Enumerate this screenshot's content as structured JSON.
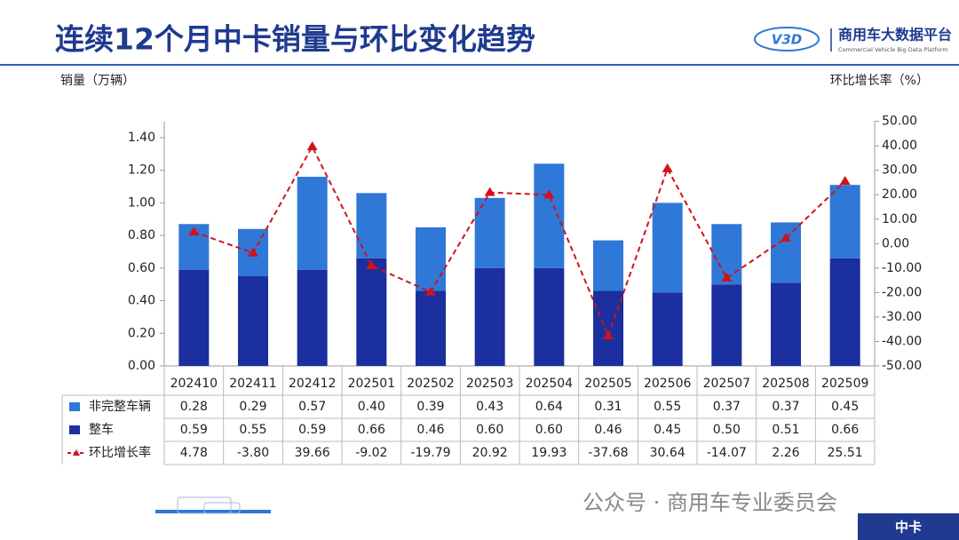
{
  "header": {
    "title": "连续12个月中卡销量与环比变化趋势",
    "logo_mark": "V3D",
    "logo_name": "商用车大数据平台",
    "logo_subtitle": "Commercial Vehicle Big Data Platform"
  },
  "chart_data": {
    "type": "bar",
    "y_label": "销量（万辆）",
    "y2_label": "环比增长率（%）",
    "categories": [
      "202410",
      "202411",
      "202412",
      "202501",
      "202502",
      "202503",
      "202504",
      "202505",
      "202506",
      "202507",
      "202508",
      "202509"
    ],
    "stacked": true,
    "series": [
      {
        "name": "整车",
        "color": "#1b2f9e",
        "values": [
          0.59,
          0.55,
          0.59,
          0.66,
          0.46,
          0.6,
          0.6,
          0.46,
          0.45,
          0.5,
          0.51,
          0.66
        ],
        "value_labels": [
          "0.59",
          "0.55",
          "0.59",
          "0.66",
          "0.46",
          "0.60",
          "0.60",
          "0.46",
          "0.45",
          "0.50",
          "0.51",
          "0.66"
        ]
      },
      {
        "name": "非完整车辆",
        "color": "#2f78d8",
        "values": [
          0.28,
          0.29,
          0.57,
          0.4,
          0.39,
          0.43,
          0.64,
          0.31,
          0.55,
          0.37,
          0.37,
          0.45
        ],
        "value_labels": [
          "0.28",
          "0.29",
          "0.57",
          "0.40",
          "0.39",
          "0.43",
          "0.64",
          "0.31",
          "0.55",
          "0.37",
          "0.37",
          "0.45"
        ]
      },
      {
        "name": "环比增长率",
        "color": "#d0121b",
        "axis": "y2",
        "type": "line",
        "values": [
          4.78,
          -3.8,
          39.66,
          -9.02,
          -19.79,
          20.92,
          19.93,
          -37.68,
          30.64,
          -14.07,
          2.26,
          25.51
        ],
        "value_labels": [
          "4.78",
          "-3.80",
          "39.66",
          "-9.02",
          "-19.79",
          "20.92",
          "19.93",
          "-37.68",
          "30.64",
          "-14.07",
          "2.26",
          "25.51"
        ]
      }
    ],
    "ylim": [
      0,
      1.5
    ],
    "yticks": [
      {
        "value": 0,
        "label": "0.00"
      },
      {
        "value": 0.2,
        "label": "0.20"
      },
      {
        "value": 0.4,
        "label": "0.40"
      },
      {
        "value": 0.6,
        "label": "0.60"
      },
      {
        "value": 0.8,
        "label": "0.80"
      },
      {
        "value": 1,
        "label": "1.00"
      },
      {
        "value": 1.2,
        "label": "1.20"
      },
      {
        "value": 1.4,
        "label": "1.40"
      }
    ],
    "y2lim": [
      -50,
      50
    ],
    "y2ticks": [
      {
        "value": -50,
        "label": "-50.00"
      },
      {
        "value": -40,
        "label": "-40.00"
      },
      {
        "value": -30,
        "label": "-30.00"
      },
      {
        "value": -20,
        "label": "-20.00"
      },
      {
        "value": -10,
        "label": "-10.00"
      },
      {
        "value": 0,
        "label": "0.00"
      },
      {
        "value": 10,
        "label": "10.00"
      },
      {
        "value": 20,
        "label": "20.00"
      },
      {
        "value": 30,
        "label": "30.00"
      },
      {
        "value": 40,
        "label": "40.00"
      },
      {
        "value": 50,
        "label": "50.00"
      }
    ]
  },
  "footer": {
    "wechat": "公众号 · 商用车专业委员会",
    "tag": "中卡"
  }
}
